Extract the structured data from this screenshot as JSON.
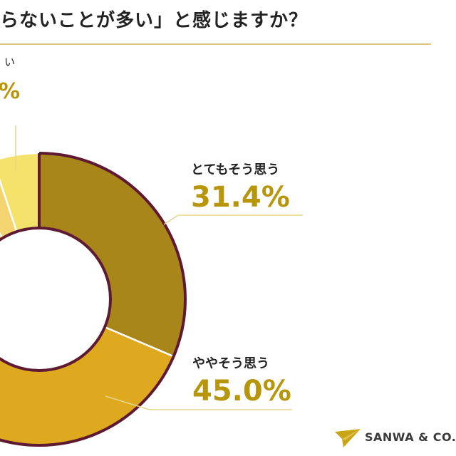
{
  "title": "らないことが多い」と感じますか？",
  "colors": {
    "title_rule": "#d9c27a",
    "ring_outline": "#5e1a33",
    "leader": "#e8d48a",
    "label_text": "#222222",
    "value_text": "#b8960c",
    "logo_mark": "#c9a516",
    "logo_text": "#3a3a3a"
  },
  "partial_labels": {
    "top_fragment": "い",
    "pct_fragment": "%"
  },
  "chart_data": {
    "type": "pie",
    "donut": true,
    "start_angle_deg": 0,
    "direction": "clockwise",
    "slices": [
      {
        "label": "とてもそう思う",
        "value": 31.4,
        "value_text": "31.4%",
        "color": "#a8861a"
      },
      {
        "label": "ややそう思う",
        "value": 45.0,
        "value_text": "45.0%",
        "color": "#dea81f"
      },
      {
        "label": "",
        "value": 15.0,
        "color": "#efc33b"
      },
      {
        "label": "",
        "value": 3.5,
        "color": "#f4d470"
      },
      {
        "label": "",
        "value": 5.1,
        "color": "#f4e26a"
      }
    ]
  },
  "logo": {
    "text": "SANWA & CO.",
    "icon": "paper-plane-icon"
  }
}
